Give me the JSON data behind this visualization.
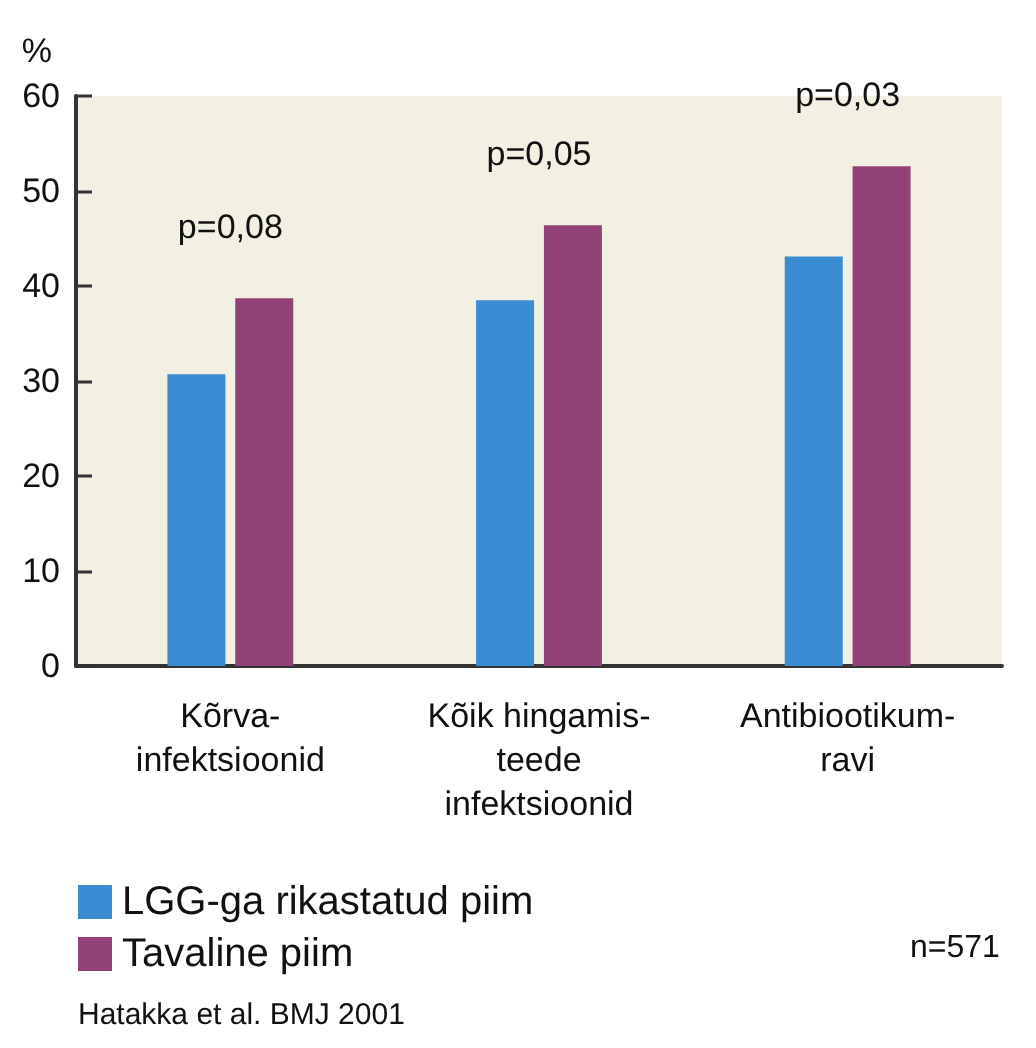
{
  "chart_data": {
    "type": "bar",
    "ylabel": "%",
    "categories": [
      "Kõrva-\ninfektsioonid",
      "Kõik hingamis-\nteede\ninfektsioonid",
      "Antibiootikum-\nravi"
    ],
    "series": [
      {
        "name": "LGG-ga rikastatud piim",
        "color": "#3a8dd2",
        "values": [
          30.7,
          38.5,
          43.1
        ]
      },
      {
        "name": "Tavaline piim",
        "color": "#924276",
        "values": [
          38.7,
          46.4,
          52.6
        ]
      }
    ],
    "ylim": [
      0,
      60
    ],
    "yticks": [
      0,
      10,
      20,
      30,
      40,
      50,
      60
    ],
    "grid": false,
    "legend": "bottom left",
    "annotations": [
      "p=0,08",
      "p=0,05",
      "p=0,03",
      "n=571",
      "Hatakka et al. BMJ 2001"
    ]
  }
}
